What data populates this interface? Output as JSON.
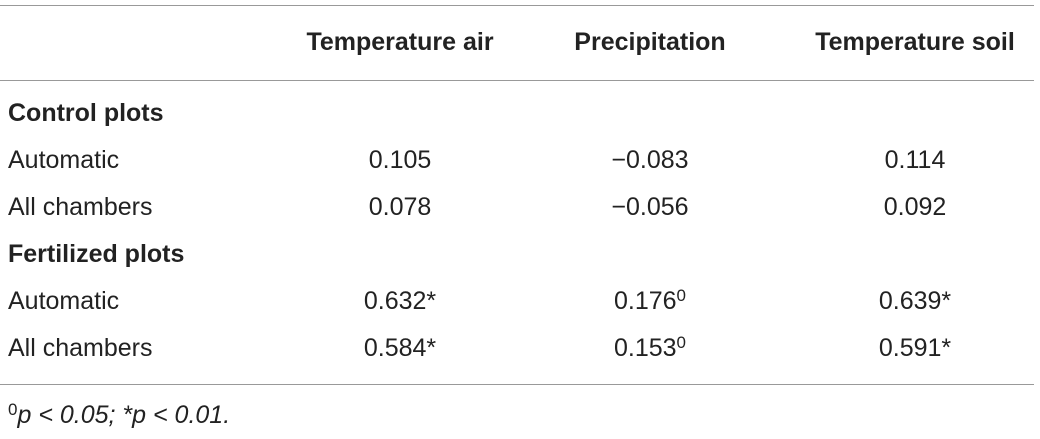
{
  "table": {
    "columns": [
      "Temperature air",
      "Precipitation",
      "Temperature soil"
    ],
    "sections": [
      {
        "title": "Control plots",
        "rows": [
          {
            "label": "Automatic",
            "cells": [
              {
                "text": "0.105"
              },
              {
                "text": "−0.083"
              },
              {
                "text": "0.114"
              }
            ]
          },
          {
            "label": "All chambers",
            "cells": [
              {
                "text": "0.078"
              },
              {
                "text": "−0.056"
              },
              {
                "text": "0.092"
              }
            ]
          }
        ]
      },
      {
        "title": "Fertilized plots",
        "rows": [
          {
            "label": "Automatic",
            "cells": [
              {
                "text": "0.632*"
              },
              {
                "text": "0.176",
                "sup": "0"
              },
              {
                "text": "0.639*"
              }
            ]
          },
          {
            "label": "All chambers",
            "cells": [
              {
                "text": "0.584*"
              },
              {
                "text": "0.153",
                "sup": "0"
              },
              {
                "text": "0.591*"
              }
            ]
          }
        ]
      }
    ]
  },
  "footnote": {
    "sup": "0",
    "text": "p < 0.05; *p < 0.01."
  }
}
